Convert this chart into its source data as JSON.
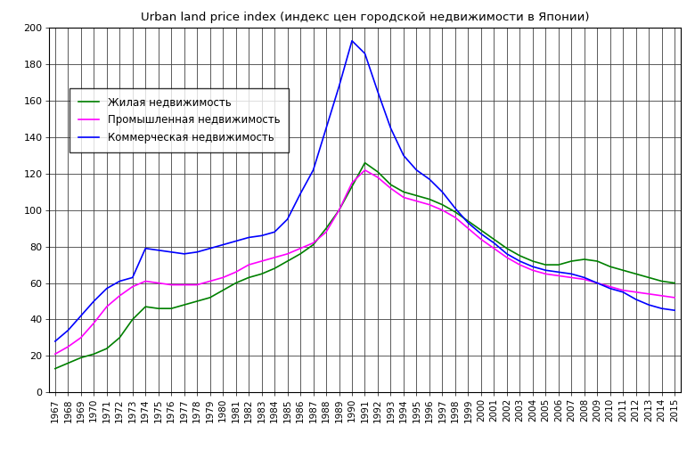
{
  "title": "Urban land price index (индекс цен городской недвижимости в Японии)",
  "years": [
    1967,
    1968,
    1969,
    1970,
    1971,
    1972,
    1973,
    1974,
    1975,
    1976,
    1977,
    1978,
    1979,
    1980,
    1981,
    1982,
    1983,
    1984,
    1985,
    1986,
    1987,
    1988,
    1989,
    1990,
    1991,
    1992,
    1993,
    1994,
    1995,
    1996,
    1997,
    1998,
    1999,
    2000,
    2001,
    2002,
    2003,
    2004,
    2005,
    2006,
    2007,
    2008,
    2009,
    2010,
    2011,
    2012,
    2013,
    2014,
    2015
  ],
  "residential": [
    13,
    16,
    19,
    21,
    24,
    30,
    40,
    47,
    46,
    46,
    48,
    50,
    52,
    56,
    60,
    63,
    65,
    68,
    72,
    76,
    81,
    90,
    100,
    113,
    126,
    121,
    114,
    110,
    108,
    106,
    103,
    99,
    94,
    89,
    84,
    79,
    75,
    72,
    70,
    70,
    72,
    73,
    72,
    69,
    67,
    65,
    63,
    61,
    60
  ],
  "industrial": [
    21,
    25,
    30,
    38,
    47,
    53,
    58,
    61,
    60,
    59,
    59,
    59,
    61,
    63,
    66,
    70,
    72,
    74,
    76,
    79,
    82,
    88,
    100,
    115,
    122,
    118,
    112,
    107,
    105,
    103,
    100,
    96,
    90,
    84,
    79,
    74,
    70,
    67,
    65,
    64,
    63,
    62,
    60,
    58,
    56,
    55,
    54,
    53,
    52
  ],
  "commercial": [
    28,
    34,
    42,
    50,
    57,
    61,
    63,
    79,
    78,
    77,
    76,
    77,
    79,
    81,
    83,
    85,
    86,
    88,
    95,
    109,
    122,
    145,
    168,
    193,
    186,
    165,
    145,
    130,
    122,
    117,
    110,
    101,
    93,
    87,
    82,
    76,
    72,
    69,
    67,
    66,
    65,
    63,
    60,
    57,
    55,
    51,
    48,
    46,
    45
  ],
  "legend_residential": "Жилая недвижимость",
  "legend_industrial": "Промышленная недвижимость",
  "legend_commercial": "Коммерческая недвижимость",
  "color_residential": "#008000",
  "color_industrial": "#ff00ff",
  "color_commercial": "#0000ff",
  "ylim": [
    0,
    200
  ],
  "yticks": [
    0,
    20,
    40,
    60,
    80,
    100,
    120,
    140,
    160,
    180,
    200
  ],
  "background_color": "#ffffff",
  "grid_color": "#404040"
}
